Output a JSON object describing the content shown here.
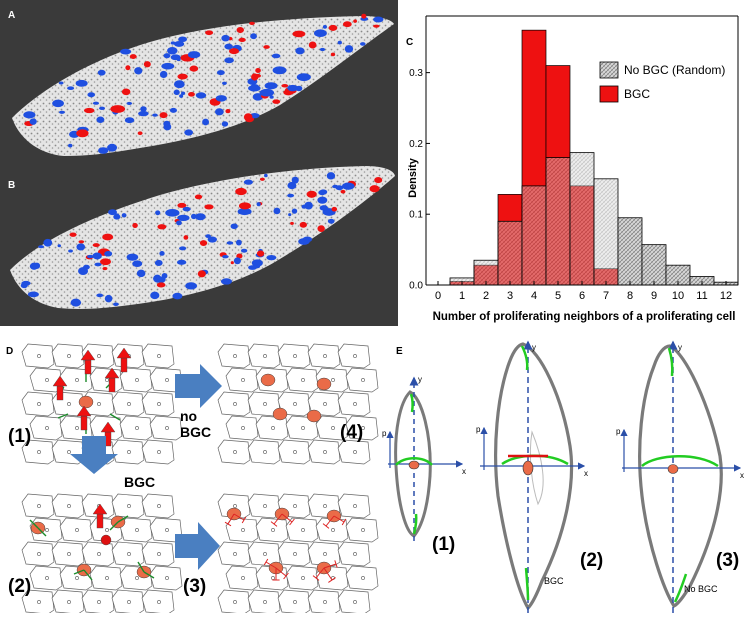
{
  "panel_labels": {
    "a": "A",
    "b": "B",
    "c": "C",
    "d": "D",
    "e": "E"
  },
  "panel_d": {
    "steps": [
      "(1)",
      "(2)",
      "(3)",
      "(4)"
    ],
    "arrow_right_label": "no BGC",
    "arrow_down_label": "BGC"
  },
  "panel_e": {
    "steps": [
      "(1)",
      "(2)",
      "(3)"
    ],
    "axis_x": "x",
    "axis_y": "y",
    "axis_p": "p",
    "shape2_label": "BGC",
    "shape3_label": "No BGC"
  },
  "colors": {
    "bgc_red": "#ee1111",
    "random_gray": "#d6d6d6",
    "tissue_gray": "#d8d8d8",
    "blue_cells": "#1f4fe0",
    "green_arrows": "#1b8a2a",
    "cell_orange": "#ea6b48",
    "arrow_blue": "#4a7fc1",
    "axis_blue": "#2b4fa8",
    "outline_gray": "#7a7a7a"
  },
  "chart_data": {
    "type": "bar",
    "title": "",
    "xlabel": "Number of proliferating neighbors of a proliferating cell",
    "ylabel": "Density",
    "categories": [
      0,
      1,
      2,
      3,
      4,
      5,
      6,
      7,
      8,
      9,
      10,
      11,
      12
    ],
    "ylim": [
      0,
      0.38
    ],
    "yticks": [
      "0.0",
      "0.1",
      "0.2",
      "0.3"
    ],
    "legend_position": "top-right",
    "grid": false,
    "series": [
      {
        "name": "No BGC (Random)",
        "color": "#d6d6d6",
        "hatched": true,
        "values": [
          0.0,
          0.01,
          0.035,
          0.09,
          0.14,
          0.18,
          0.187,
          0.15,
          0.095,
          0.057,
          0.028,
          0.012,
          0.004
        ]
      },
      {
        "name": "BGC",
        "color": "#ee1111",
        "hatched": false,
        "values": [
          0.0,
          0.005,
          0.028,
          0.128,
          0.36,
          0.31,
          0.14,
          0.023,
          0.0,
          0.0,
          0.0,
          0.0,
          0.0
        ]
      }
    ]
  }
}
